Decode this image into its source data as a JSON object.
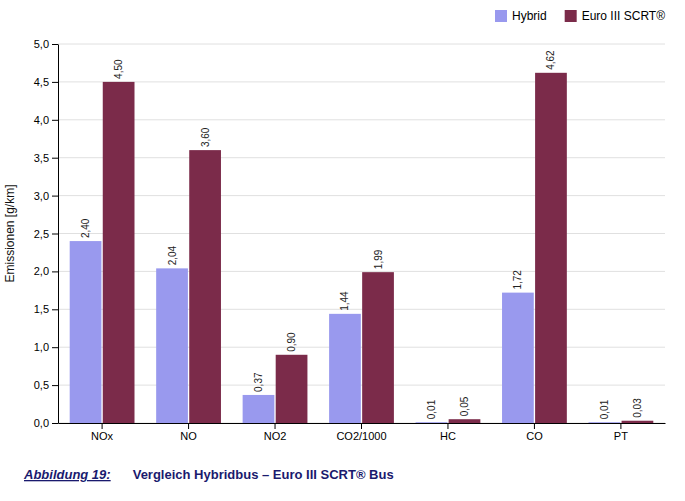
{
  "chart_data": {
    "type": "bar",
    "categories": [
      "NOx",
      "NO",
      "NO2",
      "CO2/1000",
      "HC",
      "CO",
      "PT"
    ],
    "series": [
      {
        "name": "Hybrid",
        "color": "#9999EE",
        "values": [
          2.4,
          2.04,
          0.37,
          1.44,
          0.01,
          1.72,
          0.01
        ],
        "value_labels": [
          "2,40",
          "2,04",
          "0,37",
          "1,44",
          "0,01",
          "1,72",
          "0,01"
        ]
      },
      {
        "name": "Euro III SCRT®",
        "color": "#7B2B4A",
        "values": [
          4.5,
          3.6,
          0.9,
          1.99,
          0.05,
          4.62,
          0.03
        ],
        "value_labels": [
          "4,50",
          "3,60",
          "0,90",
          "1,99",
          "0,05",
          "4,62",
          "0,03"
        ]
      }
    ],
    "ylabel": "Emissionen [g/km]",
    "ylim": [
      0,
      5.0
    ],
    "yticks": [
      {
        "value": 0.0,
        "label": "0,0"
      },
      {
        "value": 0.5,
        "label": "0,5"
      },
      {
        "value": 1.0,
        "label": "1,0"
      },
      {
        "value": 1.5,
        "label": "1,5"
      },
      {
        "value": 2.0,
        "label": "2,0"
      },
      {
        "value": 2.5,
        "label": "2,5"
      },
      {
        "value": 3.0,
        "label": "3,0"
      },
      {
        "value": 3.5,
        "label": "3,5"
      },
      {
        "value": 4.0,
        "label": "4,0"
      },
      {
        "value": 4.5,
        "label": "4,5"
      },
      {
        "value": 5.0,
        "label": "5,0"
      }
    ],
    "annotations": [
      "Abbildung 19:",
      "Vergleich Hybridbus – Euro III SCRT® Bus"
    ],
    "grid": true,
    "legend": "upper right",
    "data_labels": true
  }
}
